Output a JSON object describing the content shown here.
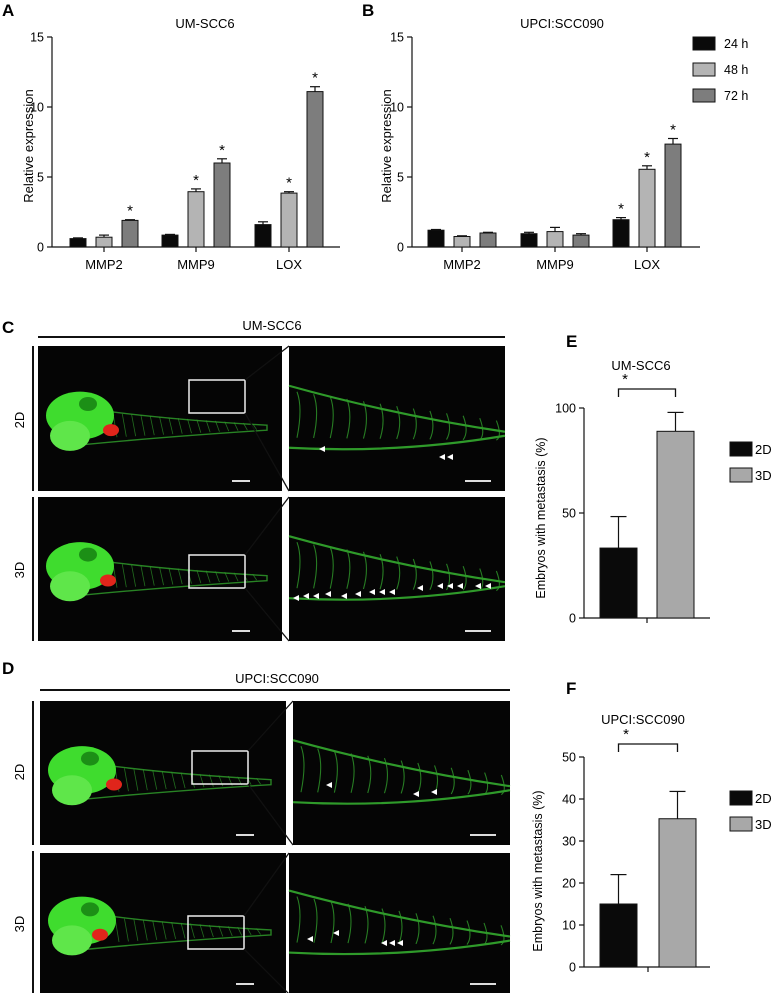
{
  "panel_letters": {
    "a": "A",
    "b": "B",
    "c": "C",
    "d": "D",
    "e": "E",
    "f": "F"
  },
  "legend_time": [
    "24 h",
    "48 h",
    "72 h"
  ],
  "legend_dim": [
    "2D",
    "3D"
  ],
  "colors": {
    "h24": "#0a0a0a",
    "h48": "#b4b4b4",
    "h72": "#7d7d7d",
    "d2": "#0a0a0a",
    "d3": "#a8a8a8",
    "fish_green": "#3fdc2e",
    "vessel_green": "#2f9a2a",
    "tumor_red": "#e0251b",
    "micro_bg": "#050505"
  },
  "panel_c": {
    "title": "UM-SCC6",
    "rows": [
      "2D",
      "3D"
    ]
  },
  "panel_d": {
    "title": "UPCI:SCC090",
    "rows": [
      "2D",
      "3D"
    ]
  },
  "chart_data": [
    {
      "id": "A",
      "type": "bar",
      "title": "UM-SCC6",
      "ylabel": "Relative expression",
      "categories": [
        "MMP2",
        "MMP9",
        "LOX"
      ],
      "ylim": [
        0,
        15
      ],
      "yticks": [
        0,
        5,
        10,
        15
      ],
      "series": [
        {
          "name": "24 h",
          "values": [
            0.6,
            0.85,
            1.6
          ],
          "errors": [
            0.05,
            0.05,
            0.2
          ],
          "sig": [
            false,
            false,
            false
          ]
        },
        {
          "name": "48 h",
          "values": [
            0.7,
            3.95,
            3.85
          ],
          "errors": [
            0.15,
            0.2,
            0.1
          ],
          "sig": [
            false,
            true,
            true
          ]
        },
        {
          "name": "72 h",
          "values": [
            1.9,
            6.0,
            11.1
          ],
          "errors": [
            0.05,
            0.3,
            0.35
          ],
          "sig": [
            true,
            true,
            true
          ]
        }
      ],
      "sig_label": "*"
    },
    {
      "id": "B",
      "type": "bar",
      "title": "UPCI:SCC090",
      "ylabel": "Relative expression",
      "categories": [
        "MMP2",
        "MMP9",
        "LOX"
      ],
      "ylim": [
        0,
        15
      ],
      "yticks": [
        0,
        5,
        10,
        15
      ],
      "legend_position": "top-right",
      "series": [
        {
          "name": "24 h",
          "values": [
            1.2,
            0.95,
            1.95
          ],
          "errors": [
            0.05,
            0.1,
            0.15
          ],
          "sig": [
            false,
            false,
            true
          ]
        },
        {
          "name": "48 h",
          "values": [
            0.75,
            1.1,
            5.55
          ],
          "errors": [
            0.05,
            0.3,
            0.25
          ],
          "sig": [
            false,
            false,
            true
          ]
        },
        {
          "name": "72 h",
          "values": [
            1.0,
            0.85,
            7.35
          ],
          "errors": [
            0.05,
            0.1,
            0.4
          ],
          "sig": [
            false,
            false,
            true
          ]
        }
      ],
      "sig_label": "*"
    },
    {
      "id": "E",
      "type": "bar",
      "title": "UM-SCC6",
      "ylabel": "Embryos with metastasis (%)",
      "categories": [
        "2D",
        "3D"
      ],
      "values": [
        33.3,
        88.9
      ],
      "errors": [
        15,
        9
      ],
      "ylim": [
        0,
        100
      ],
      "yticks": [
        0,
        50,
        100
      ],
      "legend_position": "right",
      "sig_label": "*"
    },
    {
      "id": "F",
      "type": "bar",
      "title": "UPCI:SCC090",
      "ylabel": "Embryos with metastasis (%)",
      "categories": [
        "2D",
        "3D"
      ],
      "values": [
        15,
        35.3
      ],
      "errors": [
        7,
        6.5
      ],
      "ylim": [
        0,
        50
      ],
      "yticks": [
        0,
        10,
        20,
        30,
        40,
        50
      ],
      "legend_position": "right",
      "sig_label": "*"
    }
  ]
}
